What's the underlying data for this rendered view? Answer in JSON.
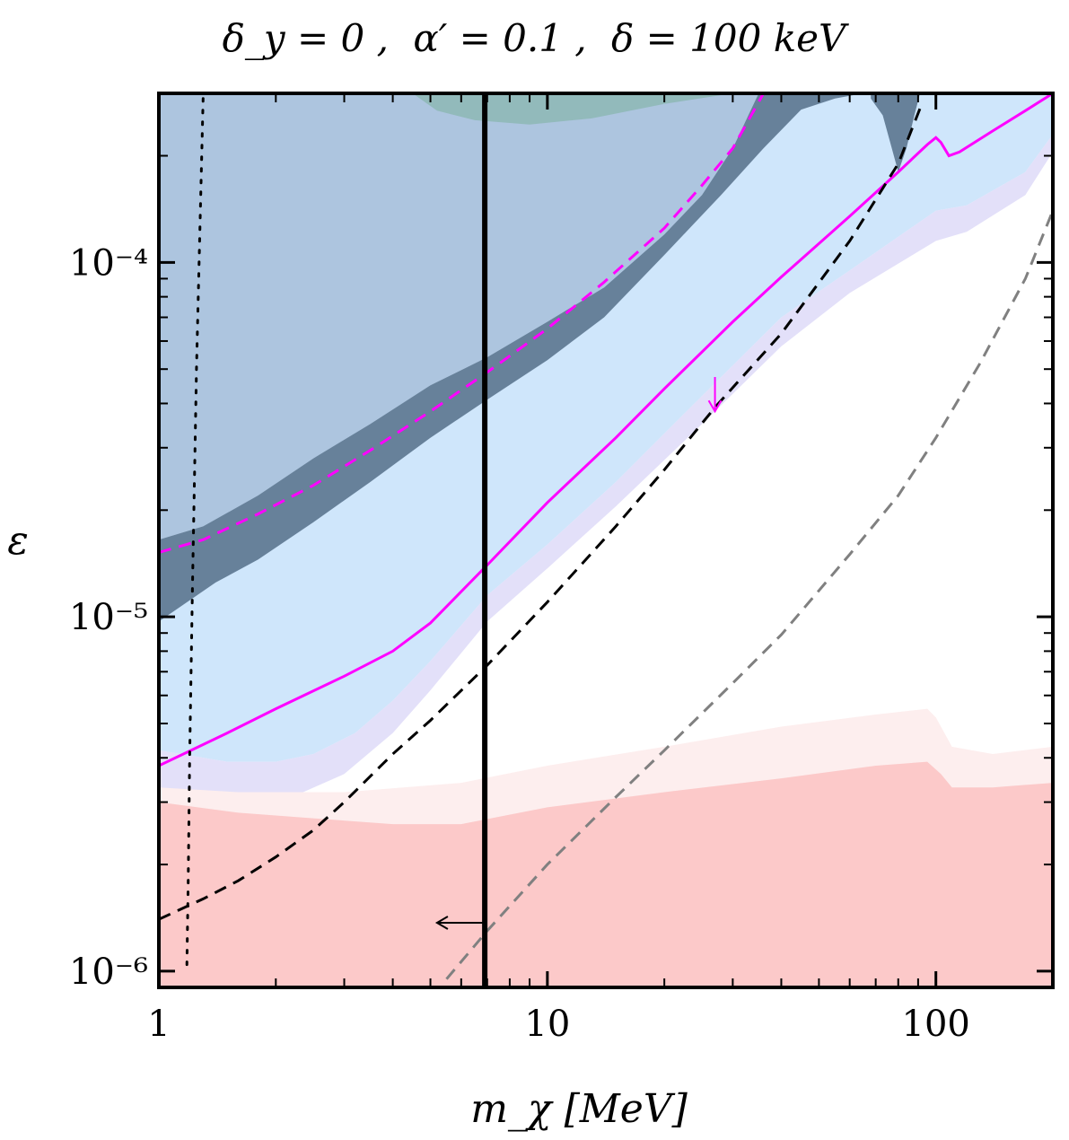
{
  "chart_data": {
    "type": "area",
    "title": "δ_y = 0 , α′ = 0.1 , δ = 100 keV",
    "title_parts": {
      "delta_y": "δ_y = 0 ,",
      "alpha": "α′ = 0.1 ,",
      "delta": "δ = 100 keV"
    },
    "xlabel": "m_χ [MeV]",
    "ylabel": "ε",
    "xscale": "log",
    "yscale": "log",
    "xlim": [
      1,
      200
    ],
    "ylim": [
      9e-07,
      0.0003
    ],
    "x_ticks": [
      {
        "value": 1,
        "label": "1"
      },
      {
        "value": 10,
        "label": "10"
      },
      {
        "value": 100,
        "label": "100"
      }
    ],
    "y_ticks": [
      {
        "value": 1e-06,
        "label": "10⁻⁶"
      },
      {
        "value": 1e-05,
        "label": "10⁻⁵"
      },
      {
        "value": 0.0001,
        "label": "10⁻⁴"
      }
    ],
    "regions": [
      {
        "name": "gray-region",
        "color": "#d6d6d6",
        "opacity": 1,
        "points": [
          [
            1,
            0.0003
          ],
          [
            1.18,
            0.0003
          ],
          [
            1,
            0.00022
          ]
        ]
      },
      {
        "name": "light-blue-region",
        "color": "#cfe6fb",
        "opacity": 1,
        "points": [
          [
            1,
            0.0003
          ],
          [
            200,
            0.0003
          ],
          [
            200,
            0.00023
          ],
          [
            170,
            0.00018
          ],
          [
            120,
            0.000145
          ],
          [
            100,
            0.00014
          ],
          [
            60,
            9.5e-05
          ],
          [
            40,
            7e-05
          ],
          [
            25,
            4.2e-05
          ],
          [
            15,
            2.4e-05
          ],
          [
            10,
            1.6e-05
          ],
          [
            7,
            1.15e-05
          ],
          [
            5,
            7.5e-06
          ],
          [
            4,
            5.8e-06
          ],
          [
            3.2,
            4.7e-06
          ],
          [
            2.5,
            4.1e-06
          ],
          [
            2,
            3.9e-06
          ],
          [
            1.5,
            3.9e-06
          ],
          [
            1,
            4.2e-06
          ]
        ]
      },
      {
        "name": "lavender-region",
        "color": "#dcd8f7",
        "opacity": 0.8,
        "points": [
          [
            1,
            4.2e-06
          ],
          [
            1.5,
            3.9e-06
          ],
          [
            2,
            3.9e-06
          ],
          [
            2.5,
            4.1e-06
          ],
          [
            3.2,
            4.7e-06
          ],
          [
            4,
            5.8e-06
          ],
          [
            5,
            7.5e-06
          ],
          [
            7,
            1.15e-05
          ],
          [
            10,
            1.6e-05
          ],
          [
            15,
            2.4e-05
          ],
          [
            25,
            4.2e-05
          ],
          [
            40,
            7e-05
          ],
          [
            60,
            9.5e-05
          ],
          [
            100,
            0.00014
          ],
          [
            120,
            0.000145
          ],
          [
            170,
            0.00018
          ],
          [
            200,
            0.00023
          ],
          [
            200,
            0.000205
          ],
          [
            170,
            0.000155
          ],
          [
            120,
            0.000122
          ],
          [
            100,
            0.000115
          ],
          [
            60,
            8.2e-05
          ],
          [
            40,
            5.8e-05
          ],
          [
            25,
            3.5e-05
          ],
          [
            15,
            2.05e-05
          ],
          [
            10,
            1.37e-05
          ],
          [
            7,
            9.7e-06
          ],
          [
            5,
            6.2e-06
          ],
          [
            4,
            4.7e-06
          ],
          [
            3,
            3.6e-06
          ],
          [
            2.2,
            3.1e-06
          ],
          [
            1.6,
            3e-06
          ],
          [
            1.2,
            3.1e-06
          ],
          [
            1,
            3.3e-06
          ]
        ]
      },
      {
        "name": "light-pink-region",
        "color": "#fdeeee",
        "opacity": 1,
        "points": [
          [
            1,
            3.3e-06
          ],
          [
            1.6,
            3.2e-06
          ],
          [
            3,
            3.2e-06
          ],
          [
            6,
            3.4e-06
          ],
          [
            10,
            3.8e-06
          ],
          [
            20,
            4.3e-06
          ],
          [
            40,
            4.9e-06
          ],
          [
            70,
            5.3e-06
          ],
          [
            95,
            5.5e-06
          ],
          [
            100,
            5.2e-06
          ],
          [
            110,
            4.3e-06
          ],
          [
            140,
            4.1e-06
          ],
          [
            200,
            4.3e-06
          ],
          [
            200,
            9e-07
          ],
          [
            1,
            9e-07
          ]
        ]
      },
      {
        "name": "pink-region",
        "color": "#fcc9c9",
        "opacity": 1,
        "points": [
          [
            1,
            3e-06
          ],
          [
            1.6,
            2.8e-06
          ],
          [
            2.5,
            2.7e-06
          ],
          [
            4,
            2.6e-06
          ],
          [
            6,
            2.6e-06
          ],
          [
            10,
            2.9e-06
          ],
          [
            20,
            3.2e-06
          ],
          [
            40,
            3.5e-06
          ],
          [
            70,
            3.8e-06
          ],
          [
            95,
            3.9e-06
          ],
          [
            103,
            3.6e-06
          ],
          [
            110,
            3.3e-06
          ],
          [
            140,
            3.3e-06
          ],
          [
            200,
            3.4e-06
          ],
          [
            200,
            9e-07
          ],
          [
            1,
            9e-07
          ]
        ]
      },
      {
        "name": "steel-blue-region",
        "color": "#a9c1db",
        "opacity": 0.9,
        "points": [
          [
            1,
            0.0003
          ],
          [
            35,
            0.0003
          ],
          [
            30,
            0.00021
          ],
          [
            25,
            0.000155
          ],
          [
            20,
            0.00012
          ],
          [
            14,
            8.5e-05
          ],
          [
            10,
            6.8e-05
          ],
          [
            7,
            5.4e-05
          ],
          [
            5,
            4.5e-05
          ],
          [
            3.5,
            3.5e-05
          ],
          [
            2.5,
            2.8e-05
          ],
          [
            1.8,
            2.2e-05
          ],
          [
            1.3,
            1.8e-05
          ],
          [
            1,
            1.65e-05
          ]
        ]
      },
      {
        "name": "teal-region",
        "color": "#8fb8b7",
        "opacity": 0.9,
        "points": [
          [
            4.5,
            0.0003
          ],
          [
            30,
            0.0003
          ],
          [
            20,
            0.00028
          ],
          [
            13,
            0.000255
          ],
          [
            9,
            0.000245
          ],
          [
            6.5,
            0.000252
          ],
          [
            5.2,
            0.000268
          ]
        ]
      },
      {
        "name": "dark-slate-region",
        "color": "#67819a",
        "opacity": 1,
        "points": [
          [
            1,
            1.65e-05
          ],
          [
            1.3,
            1.8e-05
          ],
          [
            1.8,
            2.2e-05
          ],
          [
            2.5,
            2.8e-05
          ],
          [
            3.5,
            3.5e-05
          ],
          [
            5,
            4.5e-05
          ],
          [
            7,
            5.4e-05
          ],
          [
            10,
            6.8e-05
          ],
          [
            14,
            8.5e-05
          ],
          [
            20,
            0.00012
          ],
          [
            25,
            0.000155
          ],
          [
            30,
            0.00021
          ],
          [
            35,
            0.0003
          ],
          [
            65,
            0.0003
          ],
          [
            55,
            0.00029
          ],
          [
            45,
            0.00027
          ],
          [
            36,
            0.00021
          ],
          [
            28,
            0.000155
          ],
          [
            20,
            0.000105
          ],
          [
            14,
            7e-05
          ],
          [
            10,
            5.3e-05
          ],
          [
            7,
            4.1e-05
          ],
          [
            5,
            3.2e-05
          ],
          [
            3.5,
            2.4e-05
          ],
          [
            2.5,
            1.85e-05
          ],
          [
            1.8,
            1.45e-05
          ],
          [
            1.4,
            1.25e-05
          ],
          [
            1,
            9.7e-06
          ]
        ]
      },
      {
        "name": "dark-slate-bump-region",
        "color": "#67819a",
        "opacity": 1,
        "points": [
          [
            68,
            0.00029
          ],
          [
            73,
            0.00026
          ],
          [
            77,
            0.00021
          ],
          [
            80,
            0.00018
          ],
          [
            84,
            0.00021
          ],
          [
            88,
            0.00026
          ],
          [
            91,
            0.0003
          ],
          [
            68,
            0.0003
          ]
        ]
      }
    ],
    "series": [
      {
        "name": "magenta-solid",
        "color": "#ff00ff",
        "style": "solid",
        "width": 3,
        "x": [
          1,
          1.5,
          2,
          3,
          4,
          5,
          7,
          10,
          15,
          20,
          30,
          40,
          60,
          80,
          95,
          100,
          103,
          108,
          115,
          140,
          170,
          200
        ],
        "y": [
          3.8e-06,
          4.7e-06,
          5.5e-06,
          6.8e-06,
          8e-06,
          9.6e-06,
          1.4e-05,
          2.1e-05,
          3.2e-05,
          4.4e-05,
          6.8e-05,
          9.1e-05,
          0.000135,
          0.00018,
          0.000215,
          0.000225,
          0.000218,
          0.0002,
          0.000205,
          0.000235,
          0.000268,
          0.0003
        ]
      },
      {
        "name": "magenta-dashed",
        "color": "#ff00ff",
        "style": "dashed",
        "width": 3,
        "x": [
          1,
          1.3,
          1.8,
          2.5,
          3.5,
          5,
          7,
          10,
          14,
          20,
          25,
          30,
          36
        ],
        "y": [
          1.52e-05,
          1.65e-05,
          1.95e-05,
          2.35e-05,
          2.95e-05,
          3.8e-05,
          4.9e-05,
          6.5e-05,
          8.8e-05,
          0.000125,
          0.000165,
          0.00021,
          0.0003
        ]
      },
      {
        "name": "black-dashed",
        "color": "#000000",
        "style": "dashed",
        "width": 3,
        "x": [
          1,
          1.3,
          1.6,
          2,
          2.5,
          3,
          4,
          5,
          7,
          10,
          15,
          20,
          27,
          40,
          60,
          80,
          92
        ],
        "y": [
          1.4e-06,
          1.6e-06,
          1.8e-06,
          2.1e-06,
          2.5e-06,
          3e-06,
          4.1e-06,
          5.1e-06,
          7.3e-06,
          1.1e-05,
          1.8e-05,
          2.6e-05,
          3.9e-05,
          6.3e-05,
          0.000115,
          0.00019,
          0.00028
        ]
      },
      {
        "name": "gray-dashed",
        "color": "#808080",
        "style": "dashed",
        "width": 3,
        "x": [
          5.5,
          7,
          10,
          15,
          20,
          30,
          40,
          60,
          80,
          100,
          130,
          170,
          200
        ],
        "y": [
          9.5e-07,
          1.3e-06,
          2e-06,
          3.1e-06,
          4.2e-06,
          6.5e-06,
          8.9e-06,
          1.5e-05,
          2.2e-05,
          3.2e-05,
          5.2e-05,
          9e-05,
          0.00014
        ]
      },
      {
        "name": "black-dotted",
        "color": "#000000",
        "style": "dotted",
        "width": 3,
        "x": [
          1.3,
          1.25,
          1.22,
          1.2,
          1.19,
          1.18
        ],
        "y": [
          0.00029,
          5e-05,
          1.2e-05,
          4e-06,
          1.8e-06,
          1e-06
        ]
      },
      {
        "name": "black-vertical",
        "color": "#000000",
        "style": "solid",
        "width": 6,
        "x": [
          6.9,
          6.9
        ],
        "y": [
          9e-07,
          0.0003
        ]
      }
    ],
    "annotations": [
      {
        "name": "magenta-down-arrow",
        "type": "arrow-down",
        "color": "#ff00ff",
        "x": 27,
        "y_from": 4.75e-05,
        "y_to": 3.8e-05
      },
      {
        "name": "black-left-arrow",
        "type": "arrow-left",
        "color": "#000000",
        "x_from": 6.9,
        "x_to": 5.2,
        "y": 1.37e-06
      }
    ]
  }
}
